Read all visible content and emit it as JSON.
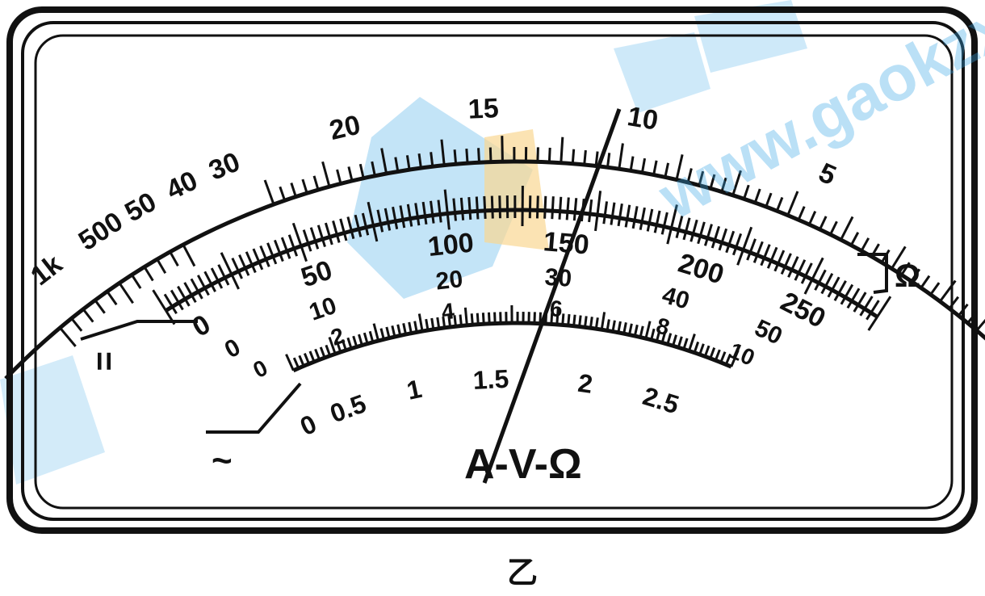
{
  "figure_label": "乙",
  "dial_label": "A-V-Ω",
  "ohm_scale": {
    "end_symbol": "Ω",
    "labels": [
      "∞",
      "1k",
      "500",
      "50",
      "40",
      "30",
      "20",
      "15",
      "10",
      "5"
    ]
  },
  "dc_scale": {
    "end_symbol": "=",
    "labels": [
      "0",
      "50",
      "100",
      "150",
      "200",
      "250"
    ]
  },
  "dc_scale_middle": {
    "labels": [
      "0",
      "10",
      "20",
      "30",
      "40",
      "50"
    ]
  },
  "inner_scale_blue": {
    "labels": [
      "0",
      "2",
      "4",
      "6",
      "8",
      "10"
    ]
  },
  "ac_scale": {
    "end_symbol": "~",
    "labels": [
      "0",
      "0.5",
      "1",
      "1.5",
      "2",
      "2.5"
    ]
  },
  "watermark": {
    "text": "www.gaokzx.com",
    "colors": {
      "blue": "#3aa6e6",
      "orange": "#f5b73b"
    }
  },
  "pointer": {
    "ohm_reading": "11",
    "dc_reading_250": "156"
  }
}
